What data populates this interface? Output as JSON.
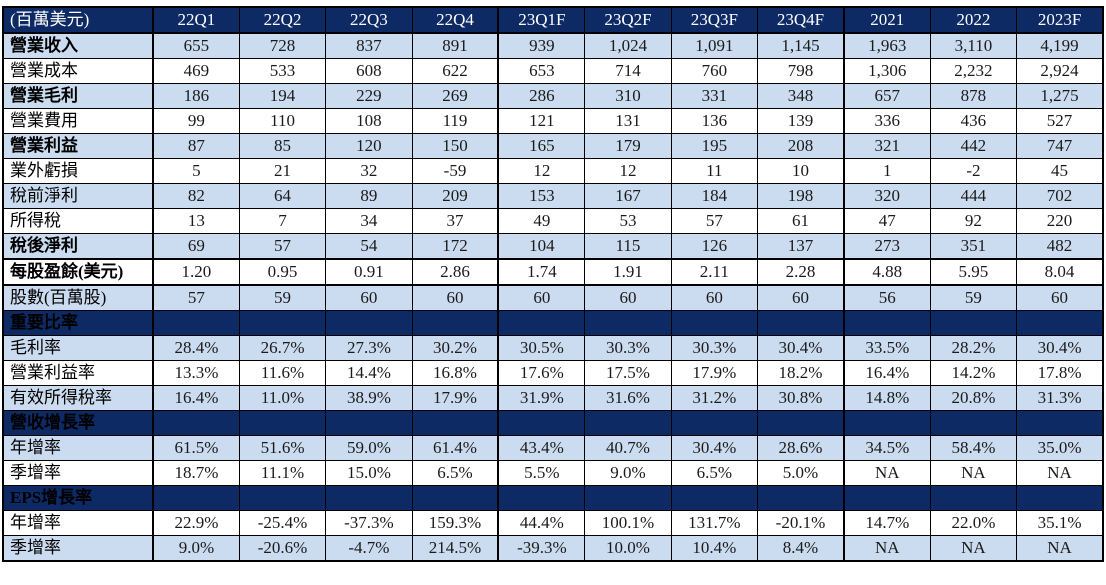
{
  "colors": {
    "header_navy": "#0e2a64",
    "stripe_blue": "#cbdcf0",
    "stripe_white": "#ffffff",
    "border_black": "#000000",
    "header_text": "#ffffff",
    "body_text": "#1a1a1a"
  },
  "table": {
    "unit_label": "(百萬美元)",
    "columns": [
      "22Q1",
      "22Q2",
      "22Q3",
      "22Q4",
      "23Q1F",
      "23Q2F",
      "23Q3F",
      "23Q4F",
      "2021",
      "2022",
      "2023F"
    ],
    "rows": [
      {
        "label": "營業收入",
        "tone": "blue",
        "bold": true,
        "emphasis": false,
        "values": [
          "655",
          "728",
          "837",
          "891",
          "939",
          "1,024",
          "1,091",
          "1,145",
          "1,963",
          "3,110",
          "4,199"
        ]
      },
      {
        "label": "營業成本",
        "tone": "white",
        "bold": false,
        "emphasis": false,
        "values": [
          "469",
          "533",
          "608",
          "622",
          "653",
          "714",
          "760",
          "798",
          "1,306",
          "2,232",
          "2,924"
        ]
      },
      {
        "label": "營業毛利",
        "tone": "blue",
        "bold": true,
        "emphasis": false,
        "values": [
          "186",
          "194",
          "229",
          "269",
          "286",
          "310",
          "331",
          "348",
          "657",
          "878",
          "1,275"
        ]
      },
      {
        "label": "營業費用",
        "tone": "white",
        "bold": false,
        "emphasis": false,
        "values": [
          "99",
          "110",
          "108",
          "119",
          "121",
          "131",
          "136",
          "139",
          "336",
          "436",
          "527"
        ]
      },
      {
        "label": "營業利益",
        "tone": "blue",
        "bold": true,
        "emphasis": false,
        "values": [
          "87",
          "85",
          "120",
          "150",
          "165",
          "179",
          "195",
          "208",
          "321",
          "442",
          "747"
        ]
      },
      {
        "label": "業外虧損",
        "tone": "white",
        "bold": false,
        "emphasis": false,
        "values": [
          "5",
          "21",
          "32",
          "-59",
          "12",
          "12",
          "11",
          "10",
          "1",
          "-2",
          "45"
        ]
      },
      {
        "label": "稅前淨利",
        "tone": "blue",
        "bold": false,
        "emphasis": false,
        "values": [
          "82",
          "64",
          "89",
          "209",
          "153",
          "167",
          "184",
          "198",
          "320",
          "444",
          "702"
        ]
      },
      {
        "label": "所得稅",
        "tone": "white",
        "bold": false,
        "emphasis": false,
        "values": [
          "13",
          "7",
          "34",
          "37",
          "49",
          "53",
          "57",
          "61",
          "47",
          "92",
          "220"
        ]
      },
      {
        "label": "稅後淨利",
        "tone": "blue",
        "bold": true,
        "emphasis": false,
        "values": [
          "69",
          "57",
          "54",
          "172",
          "104",
          "115",
          "126",
          "137",
          "273",
          "351",
          "482"
        ]
      },
      {
        "label": "每股盈餘(美元)",
        "tone": "white",
        "bold": true,
        "emphasis": true,
        "values": [
          "1.20",
          "0.95",
          "0.91",
          "2.86",
          "1.74",
          "1.91",
          "2.11",
          "2.28",
          "4.88",
          "5.95",
          "8.04"
        ]
      },
      {
        "label": "股數(百萬股)",
        "tone": "blue",
        "bold": false,
        "emphasis": false,
        "values": [
          "57",
          "59",
          "60",
          "60",
          "60",
          "60",
          "60",
          "60",
          "56",
          "59",
          "60"
        ]
      },
      {
        "label": "重要比率",
        "tone": "section",
        "bold": true,
        "emphasis": false,
        "values": [
          "",
          "",
          "",
          "",
          "",
          "",
          "",
          "",
          "",
          "",
          ""
        ]
      },
      {
        "label": "毛利率",
        "tone": "blue",
        "bold": false,
        "emphasis": false,
        "values": [
          "28.4%",
          "26.7%",
          "27.3%",
          "30.2%",
          "30.5%",
          "30.3%",
          "30.3%",
          "30.4%",
          "33.5%",
          "28.2%",
          "30.4%"
        ]
      },
      {
        "label": "營業利益率",
        "tone": "white",
        "bold": false,
        "emphasis": false,
        "values": [
          "13.3%",
          "11.6%",
          "14.4%",
          "16.8%",
          "17.6%",
          "17.5%",
          "17.9%",
          "18.2%",
          "16.4%",
          "14.2%",
          "17.8%"
        ]
      },
      {
        "label": "有效所得稅率",
        "tone": "blue",
        "bold": false,
        "emphasis": false,
        "values": [
          "16.4%",
          "11.0%",
          "38.9%",
          "17.9%",
          "31.9%",
          "31.6%",
          "31.2%",
          "30.8%",
          "14.8%",
          "20.8%",
          "31.3%"
        ]
      },
      {
        "label": "營收增長率",
        "tone": "section",
        "bold": true,
        "emphasis": false,
        "values": [
          "",
          "",
          "",
          "",
          "",
          "",
          "",
          "",
          "",
          "",
          ""
        ]
      },
      {
        "label": "年增率",
        "tone": "blue",
        "bold": false,
        "emphasis": false,
        "values": [
          "61.5%",
          "51.6%",
          "59.0%",
          "61.4%",
          "43.4%",
          "40.7%",
          "30.4%",
          "28.6%",
          "34.5%",
          "58.4%",
          "35.0%"
        ]
      },
      {
        "label": "季增率",
        "tone": "white",
        "bold": false,
        "emphasis": false,
        "values": [
          "18.7%",
          "11.1%",
          "15.0%",
          "6.5%",
          "5.5%",
          "9.0%",
          "6.5%",
          "5.0%",
          "NA",
          "NA",
          "NA"
        ]
      },
      {
        "label": "EPS增長率",
        "tone": "section",
        "bold": true,
        "emphasis": false,
        "values": [
          "",
          "",
          "",
          "",
          "",
          "",
          "",
          "",
          "",
          "",
          ""
        ]
      },
      {
        "label": "年增率",
        "tone": "white",
        "bold": false,
        "emphasis": false,
        "values": [
          "22.9%",
          "-25.4%",
          "-37.3%",
          "159.3%",
          "44.4%",
          "100.1%",
          "131.7%",
          "-20.1%",
          "14.7%",
          "22.0%",
          "35.1%"
        ]
      },
      {
        "label": "季增率",
        "tone": "blue",
        "bold": false,
        "emphasis": false,
        "values": [
          "9.0%",
          "-20.6%",
          "-4.7%",
          "214.5%",
          "-39.3%",
          "10.0%",
          "10.4%",
          "8.4%",
          "NA",
          "NA",
          "NA"
        ]
      }
    ]
  }
}
